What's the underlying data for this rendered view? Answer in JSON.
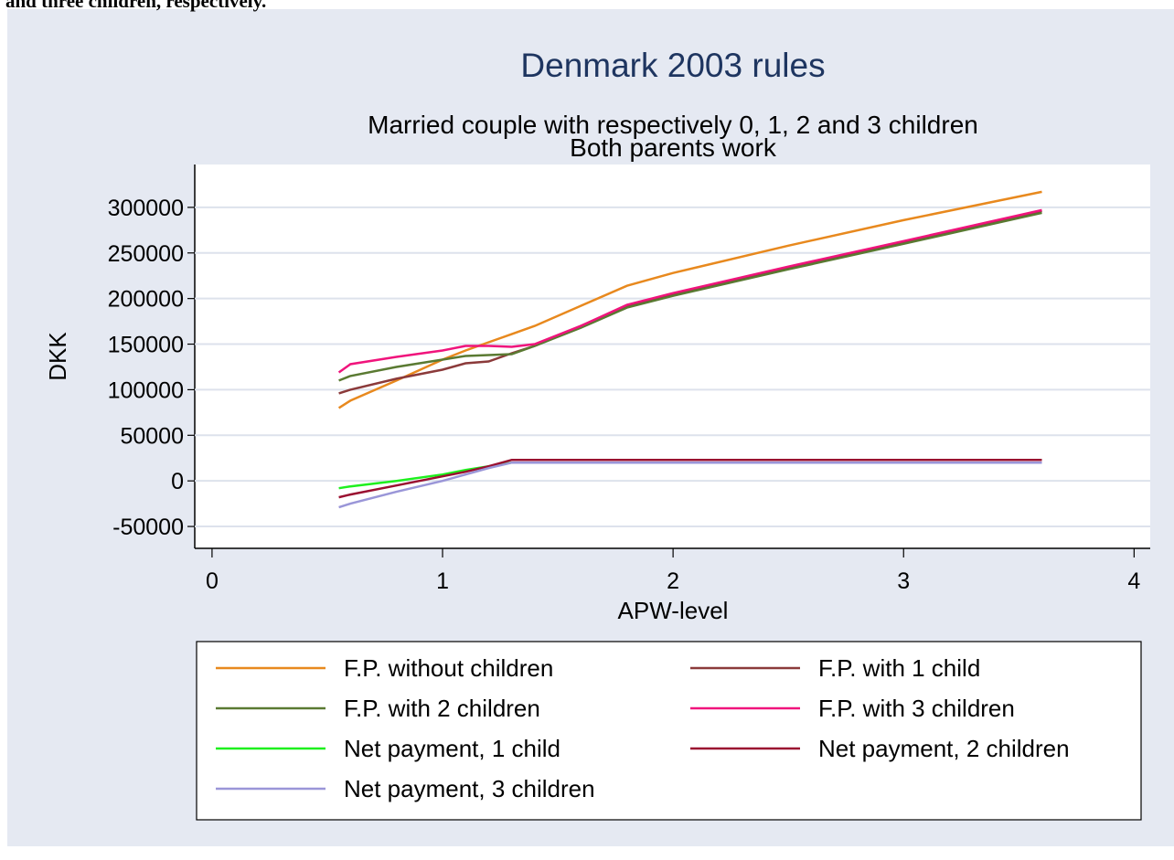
{
  "caption": "and three children, respectively.",
  "chart_data": {
    "type": "line",
    "title": "Denmark 2003 rules",
    "subtitle": [
      "Married couple with respectively 0, 1, 2 and 3 children",
      "Both parents work"
    ],
    "x_label": "APW-level",
    "y_label": "DKK",
    "x": [
      0.55,
      0.6,
      0.8,
      1.0,
      1.1,
      1.2,
      1.3,
      1.4,
      1.6,
      1.8,
      2.0,
      2.5,
      3.0,
      3.6
    ],
    "series": [
      {
        "name": "F.P. without children",
        "color": "#e8891e",
        "values": [
          80000,
          88000,
          110000,
          133000,
          143000,
          152000,
          161000,
          170000,
          192000,
          214000,
          228000,
          258000,
          286000,
          317000
        ]
      },
      {
        "name": "F.P. with 1 child",
        "color": "#8b3a3a",
        "values": [
          96000,
          100000,
          112000,
          122000,
          129000,
          131000,
          140000,
          148000,
          170000,
          192000,
          205000,
          234000,
          262000,
          296000
        ]
      },
      {
        "name": "F.P. with 2 children",
        "color": "#5a7a32",
        "values": [
          110000,
          115000,
          125000,
          133000,
          137000,
          138000,
          139000,
          148000,
          168000,
          190000,
          203000,
          232000,
          260000,
          294000
        ]
      },
      {
        "name": "F.P. with 3 children",
        "color": "#f0147c",
        "values": [
          119000,
          128000,
          136000,
          143000,
          148000,
          148000,
          147000,
          150000,
          170000,
          193000,
          206000,
          235000,
          263000,
          297000
        ]
      },
      {
        "name": "Net payment, 1 child",
        "color": "#1ef01e",
        "values": [
          -8000,
          -6000,
          0,
          7000,
          12000,
          16000,
          20000,
          20000,
          20000,
          20000,
          20000,
          20000,
          20000,
          20000
        ]
      },
      {
        "name": "Net payment, 2 children",
        "color": "#9a1030",
        "values": [
          -18000,
          -15000,
          -5000,
          5000,
          10000,
          16000,
          23000,
          23000,
          23000,
          23000,
          23000,
          23000,
          23000,
          23000
        ]
      },
      {
        "name": "Net payment, 3 children",
        "color": "#9a96d8",
        "values": [
          -29000,
          -25000,
          -12000,
          0,
          7000,
          14000,
          20000,
          20000,
          20000,
          20000,
          20000,
          20000,
          20000,
          20000
        ]
      }
    ],
    "xlim": [
      -0.075,
      4.07
    ],
    "ylim": [
      -74000,
      347000
    ],
    "xticks": [
      0,
      1,
      2,
      3,
      4
    ],
    "yticks": [
      -50000,
      0,
      50000,
      100000,
      150000,
      200000,
      250000,
      300000
    ],
    "grid": true,
    "legend": "bottom"
  }
}
